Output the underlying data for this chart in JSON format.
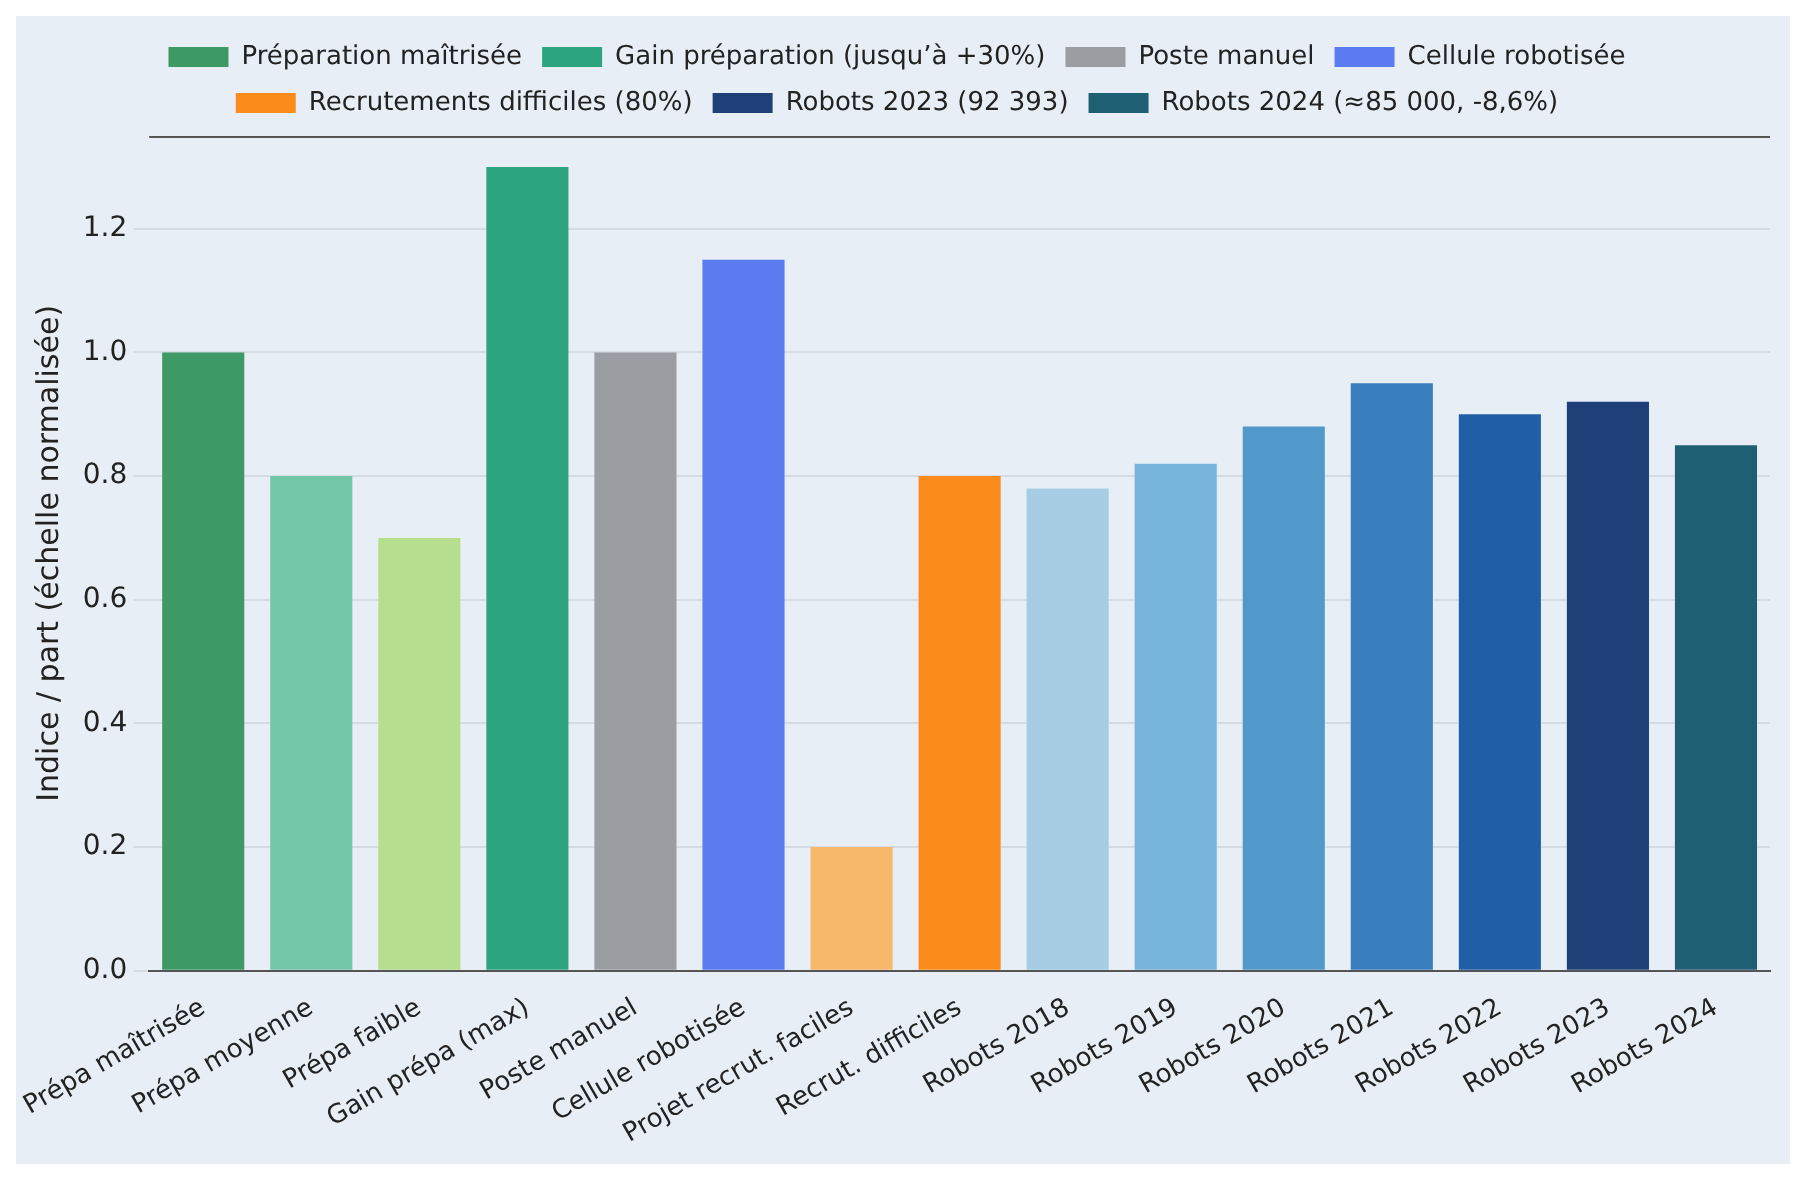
{
  "chart_data": {
    "type": "bar",
    "ylabel": "Indice / part (échelle normalisée)",
    "categories": [
      "Prépa maîtrisée",
      "Prépa moyenne",
      "Prépa faible",
      "Gain prépa (max)",
      "Poste manuel",
      "Cellule robotisée",
      "Projet recrut. faciles",
      "Recrut. difficiles",
      "Robots 2018",
      "Robots 2019",
      "Robots 2020",
      "Robots 2021",
      "Robots 2022",
      "Robots 2023",
      "Robots 2024"
    ],
    "series": [
      {
        "colors": [
          "#3d9a64",
          "#74c6a8",
          "#b5de8e",
          "#2ca57f",
          "#9a9ea3",
          "#5b7cf0",
          "#f8b86b",
          "#fb8c1c",
          "#a6cde3",
          "#77b4db",
          "#5199cb",
          "#3a7fbd",
          "#205fa6",
          "#1e3f78",
          "#1f5f74"
        ],
        "values": [
          null,
          0.8,
          0.7,
          null,
          null,
          null,
          0.2,
          null,
          0.78,
          0.82,
          0.88,
          0.95,
          0.9,
          null,
          null
        ]
      },
      {
        "name": "Préparation maîtrisée",
        "color": "#3d9a64",
        "values": [
          1.0,
          null,
          null,
          null,
          null,
          null,
          null,
          null,
          null,
          null,
          null,
          null,
          null,
          null,
          null
        ]
      },
      {
        "name": "Gain préparation (jusqu’à +30%)",
        "color": "#2ca57f",
        "values": [
          null,
          null,
          null,
          1.3,
          null,
          null,
          null,
          null,
          null,
          null,
          null,
          null,
          null,
          null,
          null
        ]
      },
      {
        "name": "Poste manuel",
        "color": "#9a9ea3",
        "values": [
          null,
          null,
          null,
          null,
          1.0,
          null,
          null,
          null,
          null,
          null,
          null,
          null,
          null,
          null,
          null
        ]
      },
      {
        "name": "Cellule robotisée",
        "color": "#5b7cf0",
        "values": [
          null,
          null,
          null,
          null,
          null,
          1.15,
          null,
          null,
          null,
          null,
          null,
          null,
          null,
          null,
          null
        ]
      },
      {
        "name": "Recrutements difficiles (80%)",
        "color": "#fb8c1c",
        "values": [
          null,
          null,
          null,
          null,
          null,
          null,
          null,
          0.8,
          null,
          null,
          null,
          null,
          null,
          null,
          null
        ]
      },
      {
        "name": "Robots 2023 (92 393)",
        "color": "#1e3f78",
        "values": [
          null,
          null,
          null,
          null,
          null,
          null,
          null,
          null,
          null,
          null,
          null,
          null,
          null,
          0.92,
          null
        ]
      },
      {
        "name": "Robots 2024 (≈85 000, -8,6%)",
        "color": "#1f5f74",
        "values": [
          null,
          null,
          null,
          null,
          null,
          null,
          null,
          null,
          null,
          null,
          null,
          null,
          null,
          null,
          0.85
        ]
      }
    ],
    "ylim": [
      0,
      1.35
    ],
    "yticks": [
      {
        "value": 0,
        "label": "0.0"
      },
      0.2,
      0.4,
      0.6,
      0.8,
      {
        "value": 1,
        "label": "1.0"
      },
      1.2
    ],
    "grid": "y",
    "legend": "top"
  }
}
